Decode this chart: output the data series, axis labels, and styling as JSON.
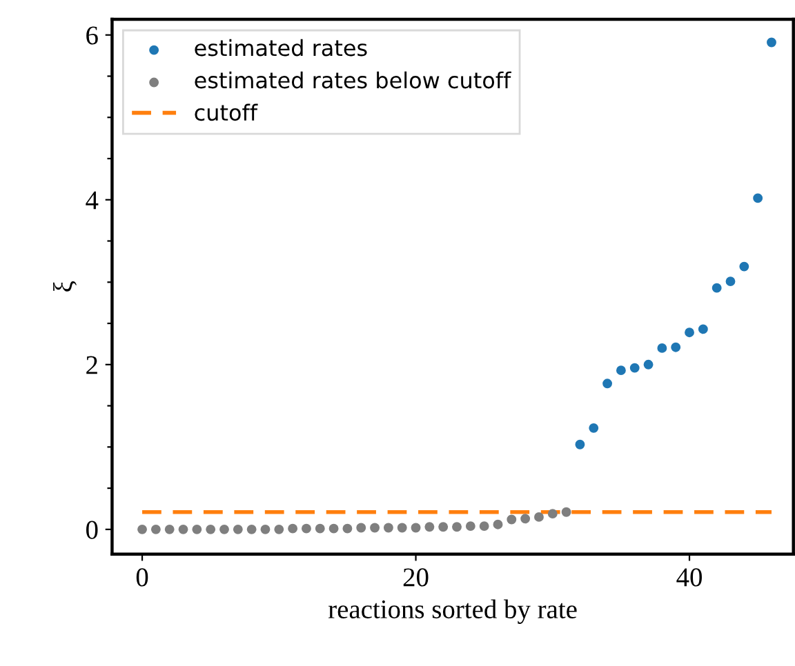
{
  "chart_data": {
    "type": "scatter",
    "xlabel": "reactions sorted by rate",
    "ylabel": "ξ",
    "xlim": [
      -2.2,
      47.6
    ],
    "ylim": [
      -0.3,
      6.19
    ],
    "xticks": [
      0,
      20,
      40
    ],
    "yticks": [
      0,
      {
        "value": 0.5,
        "label": null
      },
      {
        "value": 1,
        "label": null
      },
      {
        "value": 1.5,
        "label": null
      },
      2,
      {
        "value": 2.5,
        "label": null
      },
      {
        "value": 3,
        "label": null
      },
      {
        "value": 3.5,
        "label": null
      },
      4,
      {
        "value": 4.5,
        "label": null
      },
      {
        "value": 5,
        "label": null
      },
      {
        "value": 5.5,
        "label": null
      },
      6
    ],
    "grid": false,
    "legend": "top left",
    "marker": "circle",
    "series": [
      {
        "name": "estimated rates",
        "color": "#1f77b4",
        "x": [
          32,
          33,
          34,
          35,
          36,
          37,
          38,
          39,
          40,
          41,
          42,
          43,
          44,
          45,
          46
        ],
        "values": [
          1.03,
          1.23,
          1.77,
          1.93,
          1.96,
          2.0,
          2.2,
          2.21,
          2.39,
          2.43,
          2.93,
          3.01,
          3.19,
          4.02,
          5.91
        ]
      },
      {
        "name": "estimated rates below cutoff",
        "color": "#7f7f7f",
        "x": [
          0,
          1,
          2,
          3,
          4,
          5,
          6,
          7,
          8,
          9,
          10,
          11,
          12,
          13,
          14,
          15,
          16,
          17,
          18,
          19,
          20,
          21,
          22,
          23,
          24,
          25,
          26,
          27,
          28,
          29,
          30,
          31
        ],
        "values": [
          0.0,
          0.0,
          0.0,
          0.0,
          0.0,
          0.0,
          0.0,
          0.0,
          0.0,
          0.0,
          0.0,
          0.01,
          0.01,
          0.01,
          0.01,
          0.01,
          0.02,
          0.02,
          0.02,
          0.02,
          0.02,
          0.03,
          0.03,
          0.03,
          0.04,
          0.04,
          0.06,
          0.12,
          0.13,
          0.15,
          0.19,
          0.21
        ]
      },
      {
        "name": "cutoff",
        "type": "line",
        "color": "#ff7f0e",
        "line_style": "dashed",
        "marker": "none",
        "x": [
          0,
          46
        ],
        "values": [
          0.21,
          0.21
        ]
      }
    ]
  }
}
